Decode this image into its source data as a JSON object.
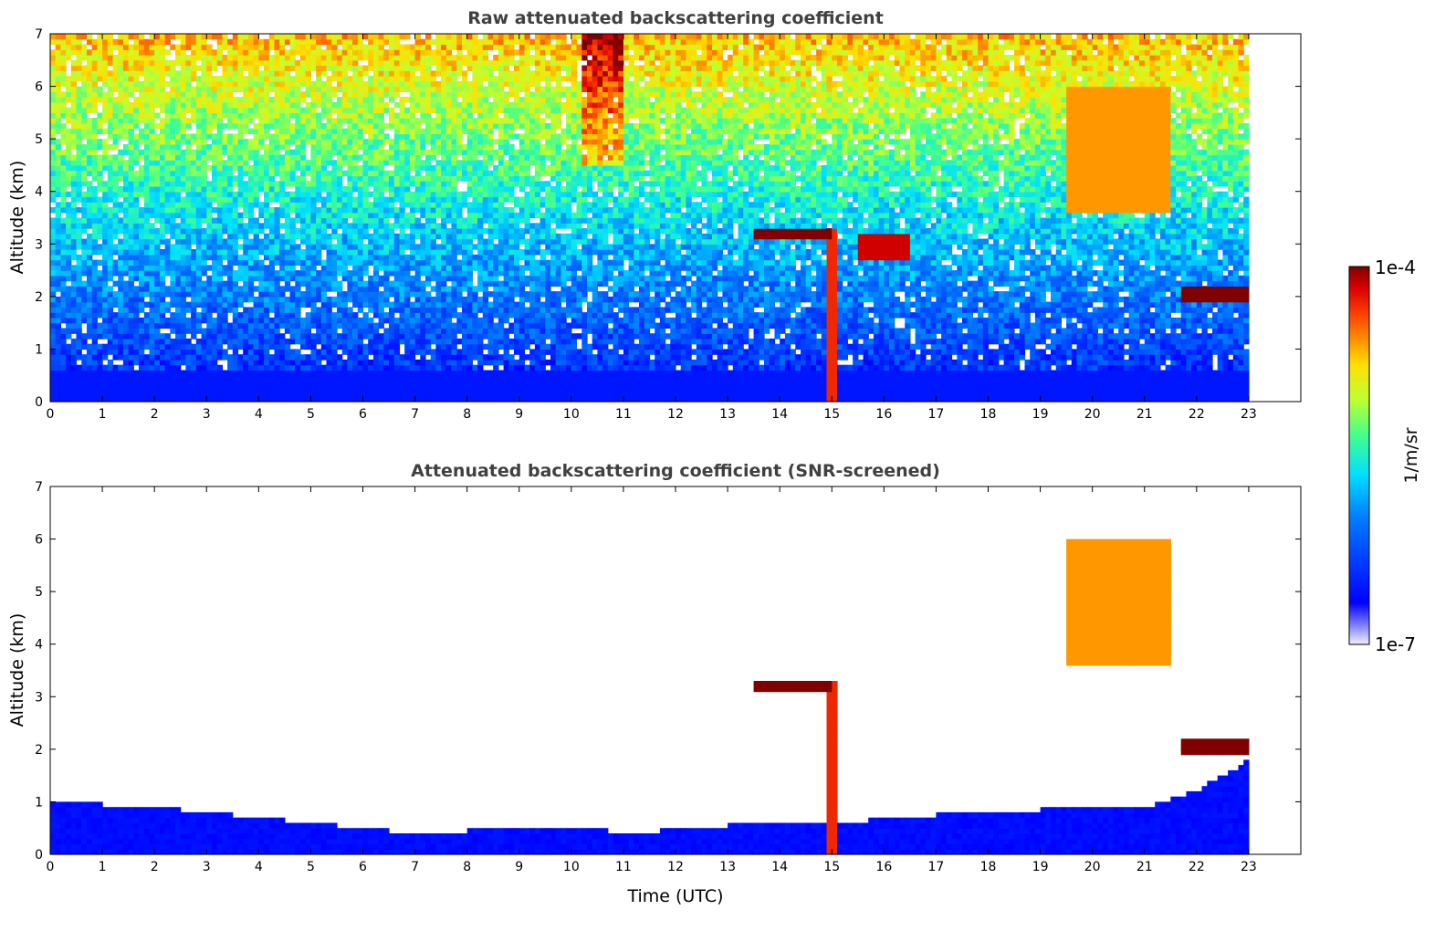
{
  "chart_data": [
    {
      "type": "heatmap",
      "title": "Raw attenuated backscattering coefficient",
      "xlabel": "",
      "ylabel": "Altitude (km)",
      "xlim": [
        0,
        24
      ],
      "ylim": [
        0,
        7
      ],
      "xticks": [
        "0",
        "1",
        "2",
        "3",
        "4",
        "5",
        "6",
        "7",
        "8",
        "9",
        "10",
        "11",
        "12",
        "13",
        "14",
        "15",
        "16",
        "17",
        "18",
        "19",
        "20",
        "21",
        "22",
        "23"
      ],
      "yticks": [
        "0",
        "1",
        "2",
        "3",
        "4",
        "5",
        "6",
        "7"
      ],
      "data_extent_x": [
        0,
        23
      ],
      "features": [
        {
          "name": "boundary layer",
          "x": [
            0,
            23
          ],
          "y": [
            0,
            0.6
          ],
          "level": 0.15
        },
        {
          "name": "plume",
          "x": [
            14.95,
            15.1
          ],
          "y": [
            0,
            3.3
          ],
          "level": 0.9
        },
        {
          "name": "cloud layer",
          "x": [
            13.5,
            15.0
          ],
          "y": [
            3.15,
            3.3
          ],
          "level": 1.0
        },
        {
          "name": "cloud layer",
          "x": [
            15.5,
            16.5
          ],
          "y": [
            2.7,
            3.2
          ],
          "level": 0.95
        },
        {
          "name": "cirrus band",
          "x": [
            19.5,
            21.5
          ],
          "y": [
            3.6,
            6.0
          ],
          "level": 0.8
        },
        {
          "name": "cloud layer",
          "x": [
            21.7,
            23.0
          ],
          "y": [
            1.9,
            2.2
          ],
          "level": 1.0
        }
      ]
    },
    {
      "type": "heatmap",
      "title": "Attenuated backscattering coefficient (SNR-screened)",
      "xlabel": "Time (UTC)",
      "ylabel": "Altitude (km)",
      "xlim": [
        0,
        24
      ],
      "ylim": [
        0,
        7
      ],
      "xticks": [
        "0",
        "1",
        "2",
        "3",
        "4",
        "5",
        "6",
        "7",
        "8",
        "9",
        "10",
        "11",
        "12",
        "13",
        "14",
        "15",
        "16",
        "17",
        "18",
        "19",
        "20",
        "21",
        "22",
        "23"
      ],
      "yticks": [
        "0",
        "1",
        "2",
        "3",
        "4",
        "5",
        "6",
        "7"
      ],
      "data_extent_x": [
        0,
        23
      ],
      "boundary_layer_top_km": [
        [
          0,
          1.0
        ],
        [
          2,
          0.9
        ],
        [
          4,
          0.7
        ],
        [
          6,
          0.5
        ],
        [
          7,
          0.4
        ],
        [
          9,
          0.5
        ],
        [
          10,
          0.55
        ],
        [
          11,
          0.4
        ],
        [
          13,
          0.55
        ],
        [
          15,
          0.6
        ],
        [
          17,
          0.75
        ],
        [
          19,
          0.85
        ],
        [
          21,
          0.9
        ],
        [
          22,
          1.2
        ],
        [
          23,
          1.8
        ]
      ],
      "features": [
        {
          "name": "plume",
          "x": [
            14.95,
            15.1
          ],
          "y": [
            0,
            3.3
          ],
          "level": 0.9
        },
        {
          "name": "cloud layer",
          "x": [
            13.5,
            15.0
          ],
          "y": [
            3.15,
            3.3
          ],
          "level": 1.0
        },
        {
          "name": "cirrus band",
          "x": [
            19.5,
            21.5
          ],
          "y": [
            3.6,
            6.0
          ],
          "level": 0.8
        },
        {
          "name": "cloud layer",
          "x": [
            21.7,
            23.0
          ],
          "y": [
            1.9,
            2.2
          ],
          "level": 1.0
        }
      ]
    }
  ],
  "colorbar": {
    "label": "1/m/sr",
    "max_label": "1e-4",
    "min_label": "1e-7",
    "colormap": "jet"
  }
}
